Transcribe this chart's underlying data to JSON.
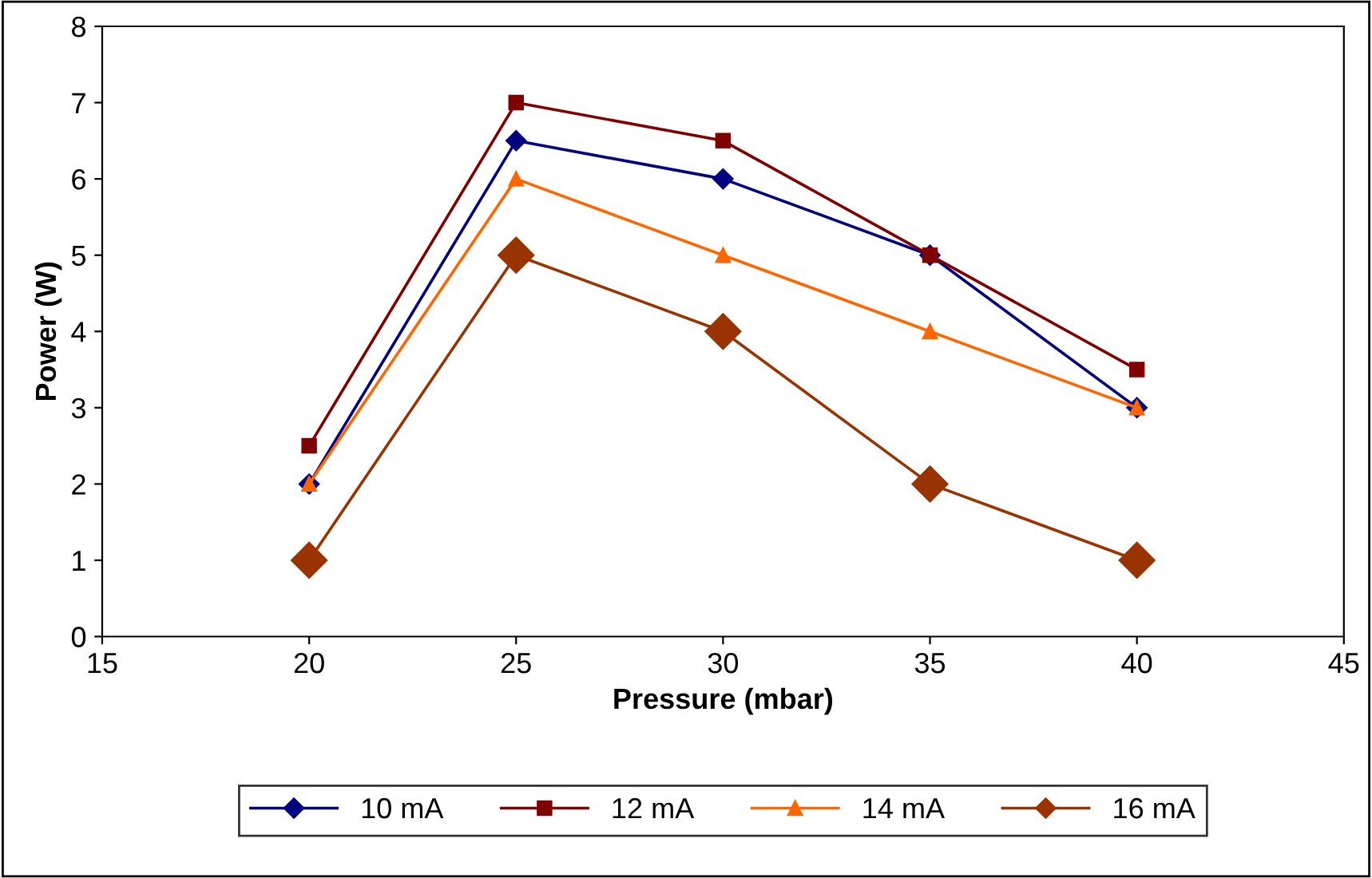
{
  "chart_data": {
    "type": "line",
    "xlabel": "Pressure (mbar)",
    "ylabel": "Power (W)",
    "x": [
      20,
      25,
      30,
      35,
      40
    ],
    "series": [
      {
        "name": "10 mA",
        "color": "#000080",
        "marker": "diamond",
        "values": [
          2,
          6.5,
          6,
          5,
          3
        ]
      },
      {
        "name": "12 mA",
        "color": "#800000",
        "marker": "square",
        "values": [
          2.5,
          7,
          6.5,
          5,
          3.5
        ]
      },
      {
        "name": "14 mA",
        "color": "#ff6600",
        "marker": "triangle",
        "values": [
          2,
          6,
          5,
          4,
          3
        ]
      },
      {
        "name": "16 mA",
        "color": "#993300",
        "marker": "diamond",
        "values": [
          1,
          5,
          4,
          2,
          1
        ]
      }
    ],
    "xlim": [
      15,
      45
    ],
    "xticks": [
      15,
      20,
      25,
      30,
      35,
      40,
      45
    ],
    "ylim": [
      0,
      8
    ],
    "yticks": [
      0,
      1,
      2,
      3,
      4,
      5,
      6,
      7,
      8
    ],
    "grid": false,
    "legend": "bottom",
    "line_style": "solid"
  }
}
